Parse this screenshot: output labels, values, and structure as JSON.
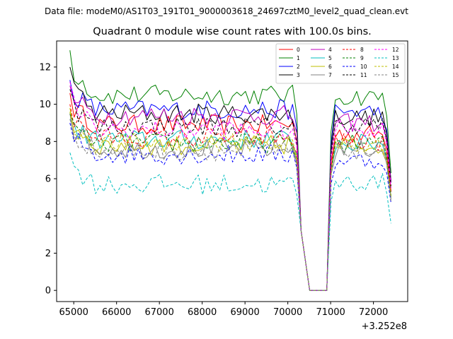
{
  "chart_data": {
    "type": "line",
    "suptitle": "Data file: modeM0/AS1T03_191T01_9000003618_24697cztM0_level2_quad_clean.evt",
    "title": "Quadrant 0 module wise count rates with 100.0s bins.",
    "xlabel": "",
    "ylabel": "",
    "x_offset_label": "+3.252e8",
    "xlim": [
      64600,
      72800
    ],
    "ylim": [
      -0.6,
      13.4
    ],
    "x_ticks": [
      65000,
      66000,
      67000,
      68000,
      69000,
      70000,
      71000,
      72000
    ],
    "x_tick_labels": [
      "65000",
      "66000",
      "67000",
      "68000",
      "69000",
      "70000",
      "71000",
      "72000"
    ],
    "y_ticks": [
      0,
      2,
      4,
      6,
      8,
      10,
      12
    ],
    "y_tick_labels": [
      "0",
      "2",
      "4",
      "6",
      "8",
      "10",
      "12"
    ],
    "legend_position": "top-right",
    "segment1": {
      "start": 64910,
      "step": 100,
      "count": 55
    },
    "segment2": {
      "start": 71010,
      "step": 100,
      "count": 15
    },
    "gap_x": [
      70510,
      70610,
      70710,
      70810,
      70910
    ],
    "series": [
      {
        "name": "0",
        "color": "#ff0000",
        "dash": "solid",
        "base": 8.9,
        "start": 10.6,
        "end": 5.3,
        "g2": 8.4
      },
      {
        "name": "1",
        "color": "#008000",
        "dash": "solid",
        "base": 10.5,
        "start": 12.9,
        "end": 6.3,
        "g2": 10.4
      },
      {
        "name": "2",
        "color": "#0000ff",
        "dash": "solid",
        "base": 9.7,
        "start": 11.3,
        "end": 5.8,
        "g2": 9.6
      },
      {
        "name": "3",
        "color": "#000000",
        "dash": "solid",
        "base": 9.5,
        "start": 12.0,
        "end": 5.9,
        "g2": 9.3
      },
      {
        "name": "4",
        "color": "#bf00bf",
        "dash": "solid",
        "base": 9.4,
        "start": 11.0,
        "end": 5.8,
        "g2": 9.0
      },
      {
        "name": "5",
        "color": "#00bfbf",
        "dash": "solid",
        "base": 8.1,
        "start": 9.2,
        "end": 5.0,
        "g2": 7.9
      },
      {
        "name": "6",
        "color": "#bfbf00",
        "dash": "solid",
        "base": 7.8,
        "start": 9.8,
        "end": 5.0,
        "g2": 7.8
      },
      {
        "name": "7",
        "color": "#808080",
        "dash": "solid",
        "base": 7.6,
        "start": 9.5,
        "end": 4.9,
        "g2": 7.6
      },
      {
        "name": "8",
        "color": "#ff0000",
        "dash": "dashed",
        "base": 8.2,
        "start": 10.0,
        "end": 5.3,
        "g2": 8.0
      },
      {
        "name": "9",
        "color": "#008000",
        "dash": "dashed",
        "base": 7.9,
        "start": 9.5,
        "end": 5.1,
        "g2": 7.9
      },
      {
        "name": "10",
        "color": "#0000ff",
        "dash": "dashed",
        "base": 7.3,
        "start": 9.0,
        "end": 4.7,
        "g2": 7.0
      },
      {
        "name": "11",
        "color": "#000000",
        "dash": "dashed",
        "base": 8.8,
        "start": 10.8,
        "end": 5.6,
        "g2": 8.9
      },
      {
        "name": "12",
        "color": "#ff00ff",
        "dash": "dashed",
        "base": 8.6,
        "start": 11.2,
        "end": 5.5,
        "g2": 8.7
      },
      {
        "name": "13",
        "color": "#00bfbf",
        "dash": "dashed",
        "base": 5.7,
        "start": 7.4,
        "end": 3.6,
        "g2": 5.8
      },
      {
        "name": "14",
        "color": "#bfbf00",
        "dash": "dashed",
        "base": 7.9,
        "start": 9.6,
        "end": 5.0,
        "g2": 7.7
      },
      {
        "name": "15",
        "color": "#808080",
        "dash": "dashed",
        "base": 7.5,
        "start": 9.2,
        "end": 4.8,
        "g2": 7.5
      }
    ]
  }
}
